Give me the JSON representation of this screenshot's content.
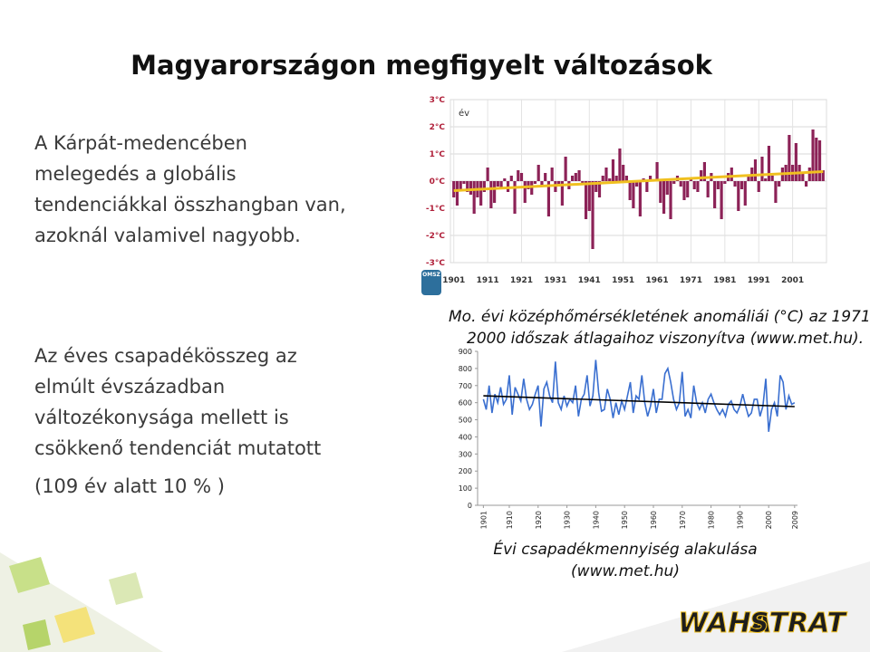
{
  "title": "Magyarországon megfigyelt változások",
  "paragraphs": [
    [
      "A Kárpát-medencében",
      "melegedés a globális",
      "tendenciákkal összhangban van,",
      "azoknál valamivel nagyobb."
    ],
    [
      "Az éves csapadékösszeg az",
      "elmúlt évszázadban",
      "változékonysága mellett is",
      "csökkenő tendenciát mutatott",
      "(109 év alatt 10 % )"
    ]
  ],
  "captions": [
    [
      "Mo. évi középhőmérsékletének anomáliái (°C) az 1971-",
      "2000  időszak átlagaihoz viszonyítva (www.met.hu)."
    ],
    [
      "Évi csapadékmennyiség alakulása",
      "(www.met.hu)"
    ]
  ],
  "logos": {
    "source": "OMSZ",
    "company": [
      "WAHA",
      "STRAT"
    ]
  },
  "chart_data": [
    {
      "type": "bar",
      "y_label": "év",
      "color": "#8c2257",
      "grid": true,
      "x": [
        1901,
        1902,
        1903,
        1904,
        1905,
        1906,
        1907,
        1908,
        1909,
        1910,
        1911,
        1912,
        1913,
        1914,
        1915,
        1916,
        1917,
        1918,
        1919,
        1920,
        1921,
        1922,
        1923,
        1924,
        1925,
        1926,
        1927,
        1928,
        1929,
        1930,
        1931,
        1932,
        1933,
        1934,
        1935,
        1936,
        1937,
        1938,
        1939,
        1940,
        1941,
        1942,
        1943,
        1944,
        1945,
        1946,
        1947,
        1948,
        1949,
        1950,
        1951,
        1952,
        1953,
        1954,
        1955,
        1956,
        1957,
        1958,
        1959,
        1960,
        1961,
        1962,
        1963,
        1964,
        1965,
        1966,
        1967,
        1968,
        1969,
        1970,
        1971,
        1972,
        1973,
        1974,
        1975,
        1976,
        1977,
        1978,
        1979,
        1980,
        1981,
        1982,
        1983,
        1984,
        1985,
        1986,
        1987,
        1988,
        1989,
        1990,
        1991,
        1992,
        1993,
        1994,
        1995,
        1996,
        1997,
        1998,
        1999,
        2000,
        2001,
        2002,
        2003,
        2004,
        2005,
        2006,
        2007,
        2008,
        2009,
        2010
      ],
      "values": [
        -0.6,
        -0.9,
        -0.3,
        -0.1,
        -0.4,
        -0.5,
        -1.2,
        -0.6,
        -0.9,
        -0.4,
        0.5,
        -1.0,
        -0.8,
        -0.2,
        -0.3,
        0.1,
        -0.4,
        0.2,
        -1.2,
        0.4,
        0.3,
        -0.8,
        -0.3,
        -0.5,
        -0.1,
        0.6,
        -0.2,
        0.3,
        -1.3,
        0.5,
        -0.4,
        -0.2,
        -0.9,
        0.9,
        -0.3,
        0.2,
        0.3,
        0.4,
        -0.1,
        -1.4,
        -1.1,
        -2.5,
        -0.4,
        -0.6,
        0.2,
        0.5,
        0.1,
        0.8,
        0.2,
        1.2,
        0.6,
        0.2,
        -0.7,
        -1.0,
        -0.2,
        -1.3,
        0.1,
        -0.4,
        0.2,
        0.0,
        0.7,
        -0.8,
        -1.2,
        -0.5,
        -1.4,
        -0.1,
        0.2,
        -0.2,
        -0.7,
        -0.6,
        0.1,
        -0.3,
        -0.4,
        0.4,
        0.7,
        -0.6,
        0.3,
        -1.0,
        -0.3,
        -1.4,
        -0.1,
        0.3,
        0.5,
        -0.2,
        -1.1,
        -0.3,
        -0.9,
        0.2,
        0.5,
        0.8,
        -0.4,
        0.9,
        0.1,
        1.3,
        0.2,
        -0.8,
        -0.2,
        0.5,
        0.6,
        1.7,
        0.6,
        1.4,
        0.6,
        0.3,
        -0.2,
        0.5,
        1.9,
        1.6,
        1.5,
        0.4
      ],
      "trend": {
        "x": [
          1901,
          2010
        ],
        "values": [
          -0.35,
          0.35
        ],
        "color": "#f0c020"
      },
      "xlim": [
        1900,
        2011
      ],
      "xticks": [
        1901,
        1911,
        1921,
        1931,
        1941,
        1951,
        1961,
        1971,
        1981,
        1991,
        2001
      ],
      "ylim": [
        -3,
        3
      ],
      "yticks": [
        {
          "value": 3,
          "label": "3°C"
        },
        {
          "value": 2,
          "label": "2°C"
        },
        {
          "value": 1,
          "label": "1°C"
        },
        {
          "value": 0,
          "label": "0°C"
        },
        {
          "value": -1,
          "label": "-1°C"
        },
        {
          "value": -2,
          "label": "-2°C"
        },
        {
          "value": -3,
          "label": "-3°C"
        }
      ]
    },
    {
      "type": "line",
      "grid": false,
      "x": [
        1901,
        1902,
        1903,
        1904,
        1905,
        1906,
        1907,
        1908,
        1909,
        1910,
        1911,
        1912,
        1913,
        1914,
        1915,
        1916,
        1917,
        1918,
        1919,
        1920,
        1921,
        1922,
        1923,
        1924,
        1925,
        1926,
        1927,
        1928,
        1929,
        1930,
        1931,
        1932,
        1933,
        1934,
        1935,
        1936,
        1937,
        1938,
        1939,
        1940,
        1941,
        1942,
        1943,
        1944,
        1945,
        1946,
        1947,
        1948,
        1949,
        1950,
        1951,
        1952,
        1953,
        1954,
        1955,
        1956,
        1957,
        1958,
        1959,
        1960,
        1961,
        1962,
        1963,
        1964,
        1965,
        1966,
        1967,
        1968,
        1969,
        1970,
        1971,
        1972,
        1973,
        1974,
        1975,
        1976,
        1977,
        1978,
        1979,
        1980,
        1981,
        1982,
        1983,
        1984,
        1985,
        1986,
        1987,
        1988,
        1989,
        1990,
        1991,
        1992,
        1993,
        1994,
        1995,
        1996,
        1997,
        1998,
        1999,
        2000,
        2001,
        2002,
        2003,
        2004,
        2005,
        2006,
        2007,
        2008,
        2009
      ],
      "series": [
        {
          "color": "#3a6fd0",
          "values": [
            620,
            560,
            700,
            540,
            650,
            600,
            690,
            590,
            620,
            760,
            530,
            690,
            650,
            610,
            740,
            620,
            560,
            590,
            650,
            700,
            460,
            680,
            720,
            640,
            600,
            840,
            600,
            560,
            640,
            580,
            620,
            600,
            700,
            520,
            620,
            650,
            760,
            580,
            640,
            850,
            660,
            550,
            560,
            680,
            620,
            510,
            600,
            530,
            610,
            560,
            640,
            720,
            540,
            640,
            620,
            760,
            600,
            520,
            580,
            680,
            540,
            620,
            620,
            770,
            800,
            720,
            620,
            560,
            600,
            780,
            520,
            560,
            510,
            700,
            600,
            560,
            600,
            540,
            620,
            650,
            600,
            560,
            530,
            560,
            520,
            590,
            610,
            560,
            540,
            580,
            650,
            580,
            520,
            540,
            620,
            620,
            520,
            580,
            740,
            430,
            560,
            600,
            520,
            760,
            720,
            560,
            640,
            590,
            600
          ]
        }
      ],
      "trend": {
        "x": [
          1901,
          2009
        ],
        "values": [
          640,
          577
        ],
        "color": "#000000"
      },
      "xlim": [
        1899,
        2010
      ],
      "xticks": [
        1901,
        1910,
        1920,
        1930,
        1940,
        1950,
        1960,
        1970,
        1980,
        1990,
        2000,
        2009
      ],
      "ylim": [
        0,
        900
      ],
      "yticks": [
        0,
        100,
        200,
        300,
        400,
        500,
        600,
        700,
        800,
        900
      ]
    }
  ]
}
